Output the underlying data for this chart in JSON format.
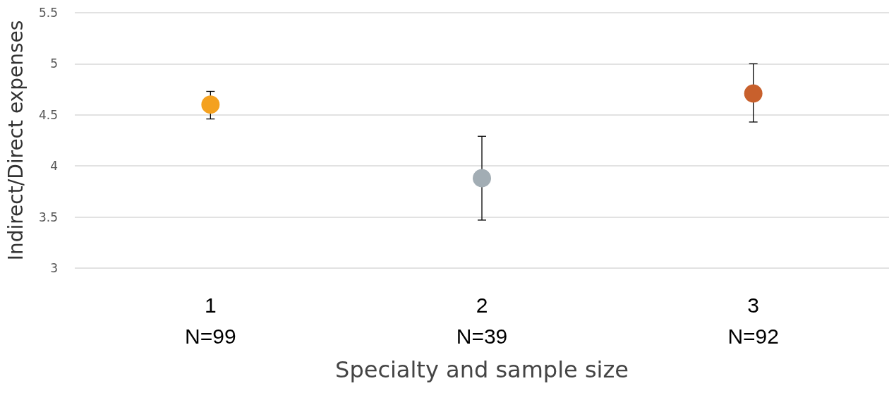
{
  "chart_data": {
    "type": "scatter",
    "xlabel": "Specialty and sample size",
    "ylabel": "Indirect/Direct expenses",
    "categories": [
      "1\nN=99",
      "2\nN=39",
      "3\nN=92"
    ],
    "values": [
      4.6,
      3.88,
      4.71
    ],
    "colors": [
      "#f4a11f",
      "#a2adb4",
      "#c8602c"
    ],
    "errors": [
      [
        4.46,
        4.73
      ],
      [
        3.47,
        4.29
      ],
      [
        4.43,
        5.0
      ]
    ],
    "ylim": [
      3,
      5.5
    ],
    "yticks": [
      3,
      3.5,
      4,
      4.5,
      5,
      5.5
    ],
    "grid": "y",
    "marker": "circle"
  }
}
